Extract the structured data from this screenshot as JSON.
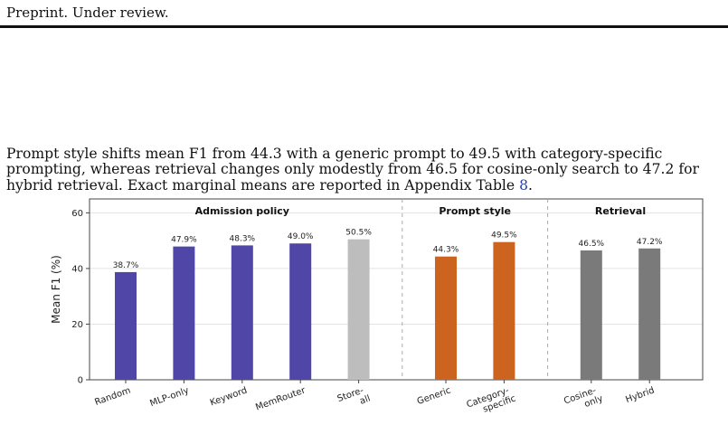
{
  "header": {
    "running_head": "Preprint. Under review."
  },
  "body": {
    "para_before": "Prompt style shifts mean F1 from 44.3 with a generic prompt to 49.5 with category-specific prompting, whereas retrieval changes only modestly from 46.5 for cosine-only search to 47.2 for hybrid retrieval. Exact marginal means are reported in Appendix Table ",
    "para_ref": "8",
    "para_after": "."
  },
  "chart_data": {
    "type": "bar",
    "ylabel": "Mean F1 (%)",
    "ylim": [
      0,
      65
    ],
    "yticks": [
      0,
      20,
      40,
      60
    ],
    "grid": true,
    "groups": [
      {
        "title": "Admission policy",
        "bars": [
          {
            "label": "Random",
            "value": 38.7,
            "value_label": "38.7%",
            "color": "#5046a8"
          },
          {
            "label": "MLP-only",
            "value": 47.9,
            "value_label": "47.9%",
            "color": "#5046a8"
          },
          {
            "label": "Keyword",
            "value": 48.3,
            "value_label": "48.3%",
            "color": "#5046a8"
          },
          {
            "label": "MemRouter",
            "value": 49.0,
            "value_label": "49.0%",
            "color": "#5046a8"
          },
          {
            "label": "Store-\nall",
            "value": 50.5,
            "value_label": "50.5%",
            "color": "#bdbdbd"
          }
        ]
      },
      {
        "title": "Prompt style",
        "bars": [
          {
            "label": "Generic",
            "value": 44.3,
            "value_label": "44.3%",
            "color": "#cc6420"
          },
          {
            "label": "Category-\nspecific",
            "value": 49.5,
            "value_label": "49.5%",
            "color": "#cc6420"
          }
        ]
      },
      {
        "title": "Retrieval",
        "bars": [
          {
            "label": "Cosine-\nonly",
            "value": 46.5,
            "value_label": "46.5%",
            "color": "#7a7a7a"
          },
          {
            "label": "Hybrid",
            "value": 47.2,
            "value_label": "47.2%",
            "color": "#7a7a7a"
          }
        ]
      }
    ]
  }
}
